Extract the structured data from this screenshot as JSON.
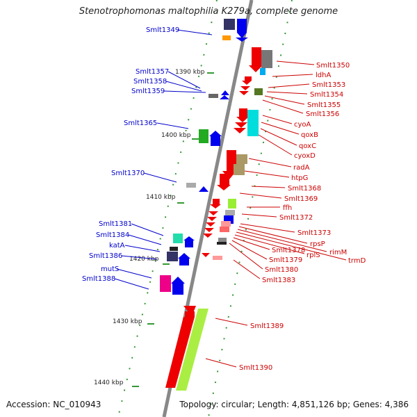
{
  "header": {
    "title": "Stenotrophomonas maltophilia K279a, complete genome"
  },
  "footer": {
    "accession_label": "Accession:",
    "accession": "NC_010943",
    "topology_label": "Topology: circular;",
    "length_label": "Length: 4,851,126 bp;",
    "genes_label": "Genes: 4,386"
  },
  "ticks": [
    "1390 kbp",
    "1400 kbp",
    "1410 kbp",
    "1420 kbp",
    "1430 kbp",
    "1440 kbp"
  ],
  "colors": {
    "left_labels": "#0000cc",
    "right_labels": "#cc0000",
    "backbone": "#888888",
    "tick_marks": "#339933"
  },
  "genes_left": [
    "Smlt1349",
    "Smlt1357",
    "Smlt1358",
    "Smlt1359",
    "Smlt1365",
    "Smlt1370",
    "Smlt1381",
    "Smlt1384",
    "katA",
    "Smlt1386",
    "mutS",
    "Smlt1388"
  ],
  "genes_right": [
    "Smlt1350",
    "ldhA",
    "Smlt1353",
    "Smlt1354",
    "Smlt1355",
    "Smlt1356",
    "cyoA",
    "qoxB",
    "qoxC",
    "cyoxD",
    "radA",
    "htpG",
    "Smlt1368",
    "Smlt1369",
    "ffh",
    "Smlt1372",
    "Smlt1373",
    "rpsP",
    "rimM",
    "trmD",
    "rplS",
    "Smlt1378",
    "Smlt1379",
    "Smlt1380",
    "Smlt1383",
    "Smlt1389",
    "Smlt1390"
  ]
}
